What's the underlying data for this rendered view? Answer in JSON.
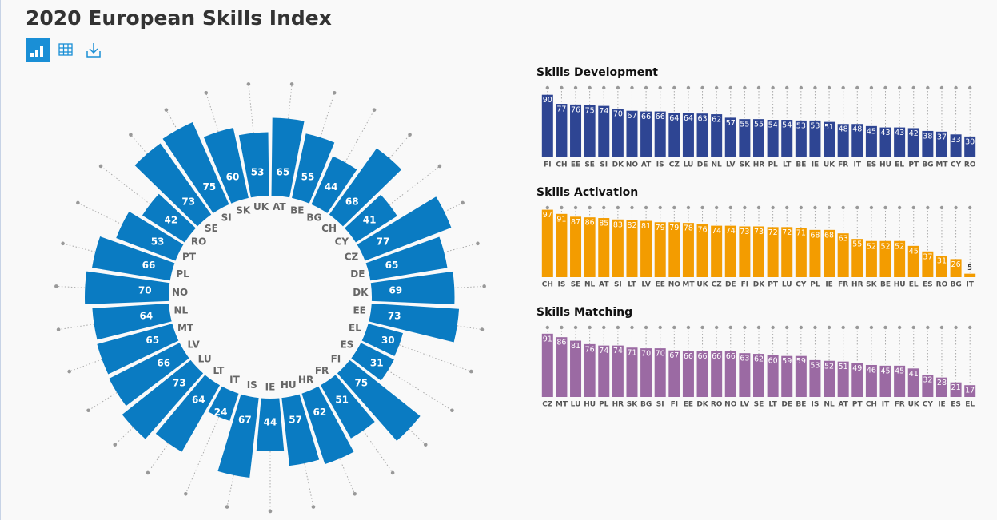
{
  "title": "2020 European Skills Index",
  "chart_data": [
    {
      "type": "radial_bar",
      "color": "#0a7bc2",
      "ylim": [
        0,
        100
      ],
      "categories": [
        "AT",
        "BE",
        "BG",
        "CH",
        "CY",
        "CZ",
        "DE",
        "DK",
        "EE",
        "EL",
        "ES",
        "FI",
        "FR",
        "HR",
        "HU",
        "IE",
        "IS",
        "IT",
        "LT",
        "LU",
        "LV",
        "MT",
        "NL",
        "NO",
        "PL",
        "PT",
        "RO",
        "SE",
        "SI",
        "SK",
        "UK"
      ],
      "values": [
        65,
        55,
        44,
        68,
        41,
        77,
        65,
        69,
        73,
        30,
        31,
        75,
        51,
        62,
        57,
        44,
        67,
        24,
        64,
        73,
        66,
        65,
        64,
        70,
        66,
        53,
        42,
        73,
        75,
        60,
        53
      ]
    },
    {
      "type": "bar",
      "title": "Skills Development",
      "color": "#2e4593",
      "ylim": [
        0,
        100
      ],
      "categories": [
        "FI",
        "CH",
        "EE",
        "SE",
        "SI",
        "DK",
        "NO",
        "AT",
        "IS",
        "CZ",
        "LU",
        "DE",
        "NL",
        "LV",
        "SK",
        "HR",
        "PL",
        "LT",
        "BE",
        "IE",
        "UK",
        "FR",
        "IT",
        "ES",
        "HU",
        "EL",
        "PT",
        "BG",
        "MT",
        "CY",
        "RO"
      ],
      "values": [
        90,
        77,
        76,
        75,
        74,
        70,
        67,
        66,
        66,
        64,
        64,
        63,
        62,
        57,
        55,
        55,
        54,
        54,
        53,
        53,
        51,
        48,
        48,
        45,
        43,
        43,
        42,
        38,
        37,
        33,
        30
      ]
    },
    {
      "type": "bar",
      "title": "Skills Activation",
      "color": "#f39c00",
      "ylim": [
        0,
        100
      ],
      "categories": [
        "CH",
        "IS",
        "SE",
        "NL",
        "AT",
        "SI",
        "LT",
        "LV",
        "EE",
        "NO",
        "MT",
        "UK",
        "CZ",
        "DE",
        "FI",
        "DK",
        "PT",
        "LU",
        "CY",
        "PL",
        "IE",
        "FR",
        "HR",
        "SK",
        "BE",
        "HU",
        "EL",
        "ES",
        "RO",
        "BG",
        "IT"
      ],
      "values": [
        97,
        91,
        87,
        86,
        85,
        83,
        82,
        81,
        79,
        79,
        78,
        76,
        74,
        74,
        73,
        73,
        72,
        72,
        71,
        68,
        68,
        63,
        55,
        52,
        52,
        52,
        45,
        37,
        31,
        26,
        5
      ]
    },
    {
      "type": "bar",
      "title": "Skills Matching",
      "color": "#9b6aa3",
      "ylim": [
        0,
        100
      ],
      "categories": [
        "CZ",
        "MT",
        "LU",
        "HU",
        "PL",
        "HR",
        "SK",
        "BG",
        "SI",
        "FI",
        "EE",
        "DK",
        "RO",
        "NO",
        "LV",
        "SE",
        "LT",
        "DE",
        "BE",
        "IS",
        "NL",
        "AT",
        "PT",
        "CH",
        "IT",
        "FR",
        "UK",
        "CY",
        "IE",
        "ES",
        "EL"
      ],
      "values": [
        91,
        86,
        81,
        76,
        74,
        74,
        71,
        70,
        70,
        67,
        66,
        66,
        66,
        66,
        63,
        62,
        60,
        59,
        59,
        53,
        52,
        51,
        49,
        46,
        45,
        45,
        41,
        32,
        28,
        21,
        17
      ]
    }
  ]
}
